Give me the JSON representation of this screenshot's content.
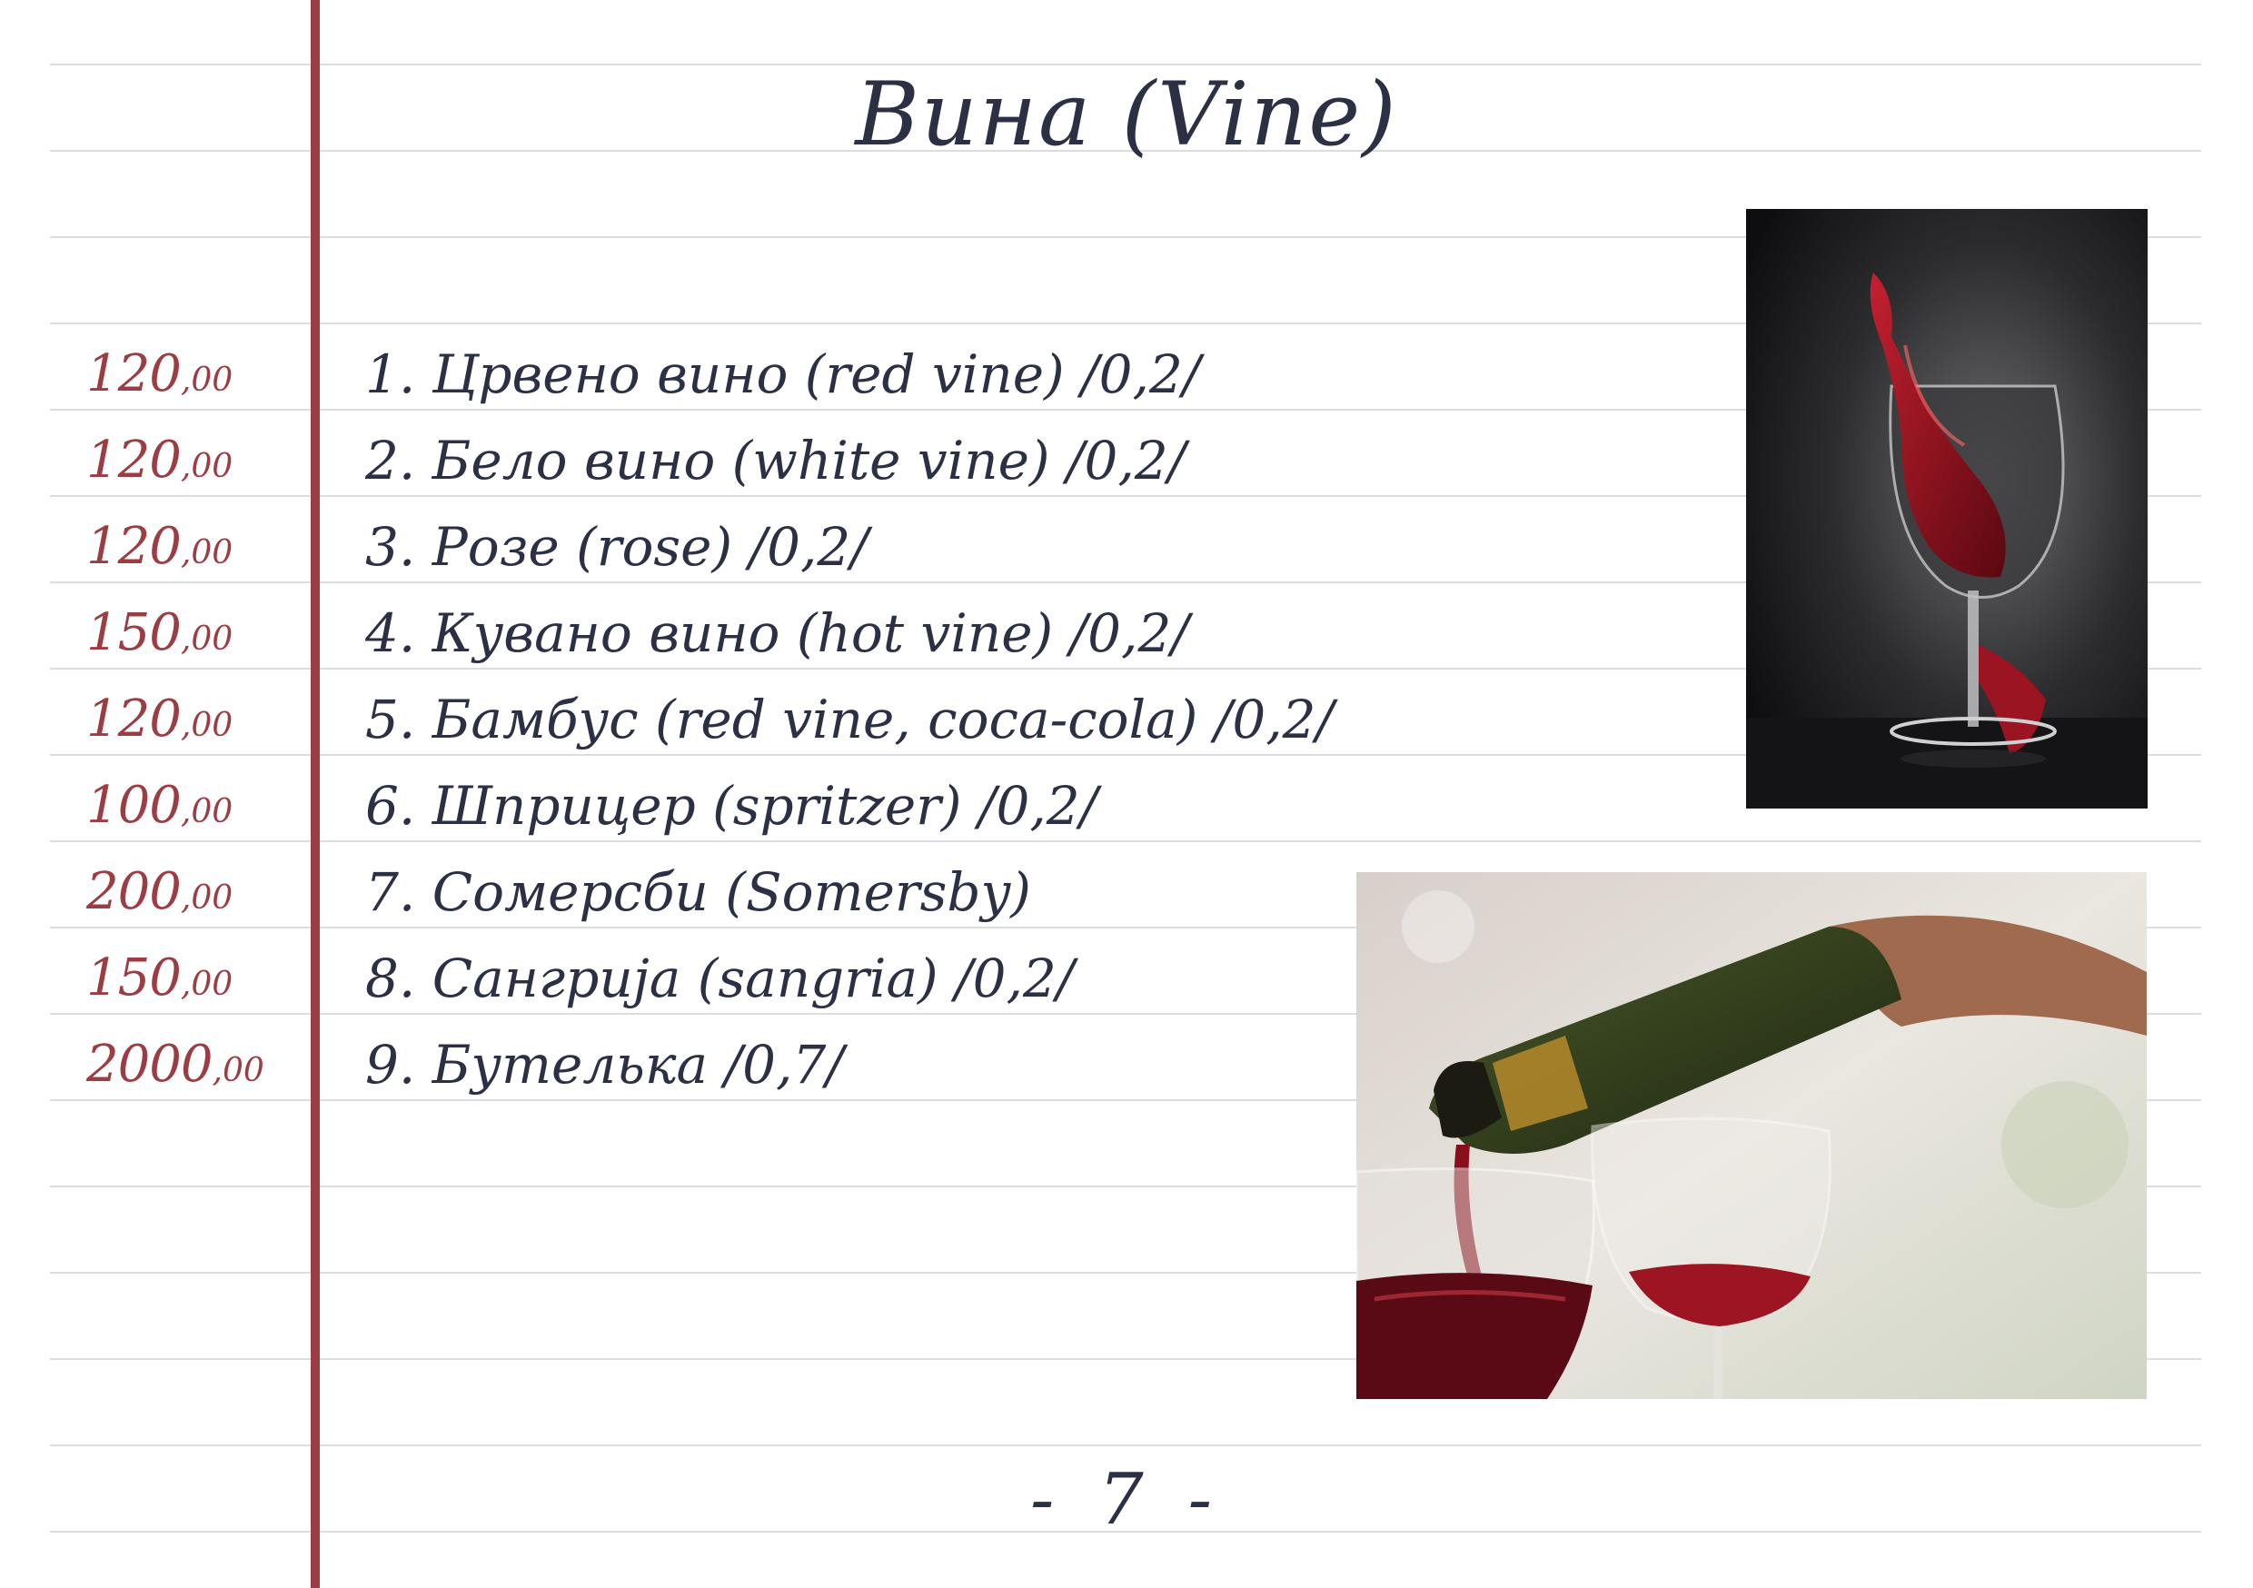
{
  "page": {
    "title": "Вина (Vine)",
    "page_number": "- 7 -"
  },
  "menu": [
    {
      "price": "120",
      "decimals": ",00",
      "item": "1. Црвено вино (red vine)     /0,2/"
    },
    {
      "price": "120",
      "decimals": ",00",
      "item": "2. Бело вино (white vine)     /0,2/"
    },
    {
      "price": "120",
      "decimals": ",00",
      "item": "3. Розе (rose)  /0,2/"
    },
    {
      "price": "150",
      "decimals": ",00",
      "item": "4. Кувано вино (hot vine)     /0,2/"
    },
    {
      "price": "120",
      "decimals": ",00",
      "item": "5. Бамбус (red vine, coca-cola)  /0,2/"
    },
    {
      "price": "100",
      "decimals": ",00",
      "item": "6. Шприцер (spritzer)  /0,2/"
    },
    {
      "price": "200",
      "decimals": ",00",
      "item": "7. Сомерсби (Somersby)"
    },
    {
      "price": "150",
      "decimals": ",00",
      "item": "8. Сангрија (sangria)   /0,2/"
    },
    {
      "price": "2000",
      "decimals": ",00",
      "item": "9. Бутелька   /0,7/"
    }
  ],
  "colors": {
    "accent": "#9c3c43",
    "text": "#2b3044",
    "ruled_line": "#dcdde0"
  }
}
